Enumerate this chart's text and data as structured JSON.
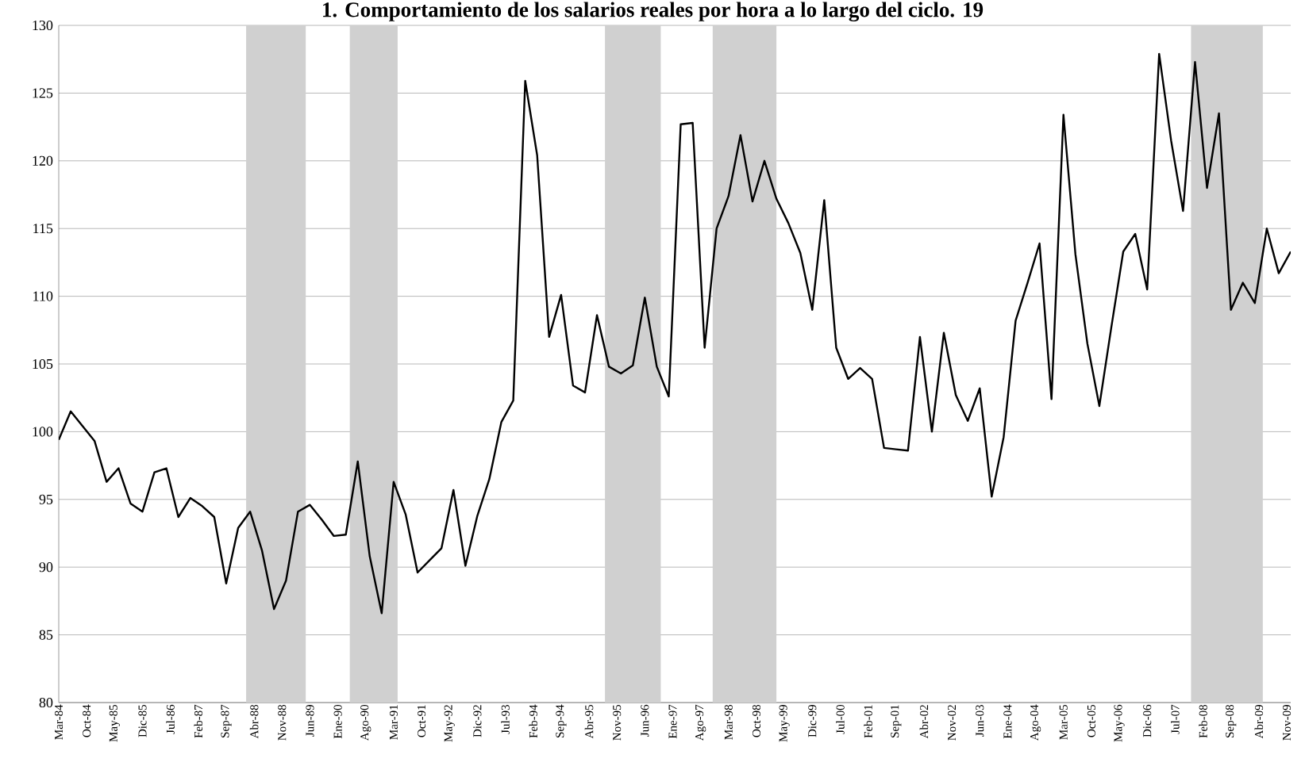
{
  "chart_data": {
    "type": "line",
    "title": "1. Comportamiento de los salarios reales por hora a lo largo del ciclo. 19",
    "x": [
      "1984-03",
      "1984-06",
      "1984-09",
      "1984-12",
      "1985-03",
      "1985-06",
      "1985-09",
      "1985-12",
      "1986-03",
      "1986-06",
      "1986-09",
      "1986-12",
      "1987-03",
      "1987-06",
      "1987-09",
      "1987-12",
      "1988-03",
      "1988-06",
      "1988-09",
      "1988-12",
      "1989-03",
      "1989-06",
      "1989-09",
      "1989-12",
      "1990-03",
      "1990-06",
      "1990-09",
      "1990-12",
      "1991-03",
      "1991-06",
      "1991-09",
      "1991-12",
      "1992-03",
      "1992-06",
      "1992-09",
      "1992-12",
      "1993-03",
      "1993-06",
      "1993-09",
      "1993-12",
      "1994-03",
      "1994-06",
      "1994-09",
      "1994-12",
      "1995-03",
      "1995-06",
      "1995-09",
      "1995-12",
      "1996-03",
      "1996-06",
      "1996-09",
      "1996-12",
      "1997-03",
      "1997-06",
      "1997-09",
      "1997-12",
      "1998-03",
      "1998-06",
      "1998-09",
      "1998-12",
      "1999-03",
      "1999-06",
      "1999-09",
      "1999-12",
      "2000-03",
      "2000-06",
      "2000-09",
      "2000-12",
      "2001-03",
      "2001-06",
      "2001-09",
      "2001-12",
      "2002-03",
      "2002-06",
      "2002-09",
      "2002-12",
      "2003-03",
      "2003-06",
      "2003-09",
      "2003-12",
      "2004-03",
      "2004-06",
      "2004-09",
      "2004-12",
      "2005-03",
      "2005-06",
      "2005-09",
      "2005-12",
      "2006-03",
      "2006-06",
      "2006-09",
      "2006-12",
      "2007-03",
      "2007-06",
      "2007-09",
      "2007-12",
      "2008-03",
      "2008-06",
      "2008-09",
      "2008-12",
      "2009-03",
      "2009-06",
      "2009-09",
      "2009-12"
    ],
    "series": [
      {
        "color": "#000000",
        "values": [
          99.4,
          101.5,
          100.4,
          99.3,
          96.3,
          97.3,
          94.7,
          94.1,
          97.0,
          97.3,
          93.7,
          95.1,
          94.5,
          93.7,
          88.8,
          92.9,
          94.1,
          91.2,
          86.9,
          89.0,
          94.1,
          94.6,
          93.5,
          92.3,
          92.4,
          97.8,
          90.8,
          86.6,
          96.3,
          93.9,
          89.6,
          90.5,
          91.4,
          95.7,
          90.1,
          93.8,
          96.5,
          100.7,
          102.3,
          125.9,
          120.4,
          107.0,
          110.1,
          103.4,
          102.9,
          108.6,
          104.8,
          104.3,
          104.9,
          109.9,
          104.8,
          102.6,
          122.7,
          122.8,
          106.2,
          115.0,
          117.4,
          121.9,
          117.0,
          120.0,
          117.2,
          115.4,
          113.2,
          109.0,
          117.1,
          106.2,
          103.9,
          104.7,
          103.9,
          98.8,
          98.7,
          98.6,
          107.0,
          100.0,
          107.3,
          102.7,
          100.8,
          103.2,
          95.2,
          99.6,
          108.2,
          111.0,
          113.9,
          102.4,
          123.4,
          113.1,
          106.5,
          101.9,
          107.7,
          113.3,
          114.6,
          110.5,
          127.9,
          121.5,
          116.3,
          127.3,
          118.0,
          123.5,
          109.0,
          111.0,
          109.5,
          115.0,
          111.7,
          113.3
        ]
      }
    ],
    "xlim": [
      "1984-03",
      "2009-12"
    ],
    "xticks": [
      {
        "value": "1984-03",
        "label": "Mar-84"
      },
      {
        "value": "1984-10",
        "label": "Oct-84"
      },
      {
        "value": "1985-05",
        "label": "May-85"
      },
      {
        "value": "1985-12",
        "label": "Dic-85"
      },
      {
        "value": "1986-07",
        "label": "Jul-86"
      },
      {
        "value": "1987-02",
        "label": "Feb-87"
      },
      {
        "value": "1987-09",
        "label": "Sep-87"
      },
      {
        "value": "1988-04",
        "label": "Abr-88"
      },
      {
        "value": "1988-11",
        "label": "Nov-88"
      },
      {
        "value": "1989-06",
        "label": "Jun-89"
      },
      {
        "value": "1990-01",
        "label": "Ene-90"
      },
      {
        "value": "1990-08",
        "label": "Ago-90"
      },
      {
        "value": "1991-03",
        "label": "Mar-91"
      },
      {
        "value": "1991-10",
        "label": "Oct-91"
      },
      {
        "value": "1992-05",
        "label": "May-92"
      },
      {
        "value": "1992-12",
        "label": "Dic-92"
      },
      {
        "value": "1993-07",
        "label": "Jul-93"
      },
      {
        "value": "1994-02",
        "label": "Feb-94"
      },
      {
        "value": "1994-09",
        "label": "Sep-94"
      },
      {
        "value": "1995-04",
        "label": "Abr-95"
      },
      {
        "value": "1995-11",
        "label": "Nov-95"
      },
      {
        "value": "1996-06",
        "label": "Jun-96"
      },
      {
        "value": "1997-01",
        "label": "Ene-97"
      },
      {
        "value": "1997-08",
        "label": "Ago-97"
      },
      {
        "value": "1998-03",
        "label": "Mar-98"
      },
      {
        "value": "1998-10",
        "label": "Oct-98"
      },
      {
        "value": "1999-05",
        "label": "May-99"
      },
      {
        "value": "1999-12",
        "label": "Dic-99"
      },
      {
        "value": "2000-07",
        "label": "Jul-00"
      },
      {
        "value": "2001-02",
        "label": "Feb-01"
      },
      {
        "value": "2001-09",
        "label": "Sep-01"
      },
      {
        "value": "2002-04",
        "label": "Abr-02"
      },
      {
        "value": "2002-11",
        "label": "Nov-02"
      },
      {
        "value": "2003-06",
        "label": "Jun-03"
      },
      {
        "value": "2004-01",
        "label": "Ene-04"
      },
      {
        "value": "2004-08",
        "label": "Ago-04"
      },
      {
        "value": "2005-03",
        "label": "Mar-05"
      },
      {
        "value": "2005-10",
        "label": "Oct-05"
      },
      {
        "value": "2006-05",
        "label": "May-06"
      },
      {
        "value": "2006-12",
        "label": "Dic-06"
      },
      {
        "value": "2007-07",
        "label": "Jul-07"
      },
      {
        "value": "2008-02",
        "label": "Feb-08"
      },
      {
        "value": "2008-09",
        "label": "Sep-08"
      },
      {
        "value": "2009-04",
        "label": "Abr-09"
      },
      {
        "value": "2009-11",
        "label": "Nov-09"
      }
    ],
    "ylim": [
      80,
      130
    ],
    "yticks": [
      80,
      85,
      90,
      95,
      100,
      105,
      110,
      115,
      120,
      125,
      130
    ],
    "grid": "y",
    "line_style": "solid",
    "bands": [
      {
        "axis": "x",
        "from": "1988-02",
        "to": "1989-05",
        "color": "#d0d0d0"
      },
      {
        "axis": "x",
        "from": "1990-04",
        "to": "1991-04",
        "color": "#d0d0d0"
      },
      {
        "axis": "x",
        "from": "1995-08",
        "to": "1996-10",
        "color": "#d0d0d0"
      },
      {
        "axis": "x",
        "from": "1997-11",
        "to": "1999-03",
        "color": "#d0d0d0"
      },
      {
        "axis": "x",
        "from": "2007-11",
        "to": "2009-05",
        "color": "#d0d0d0"
      }
    ]
  }
}
